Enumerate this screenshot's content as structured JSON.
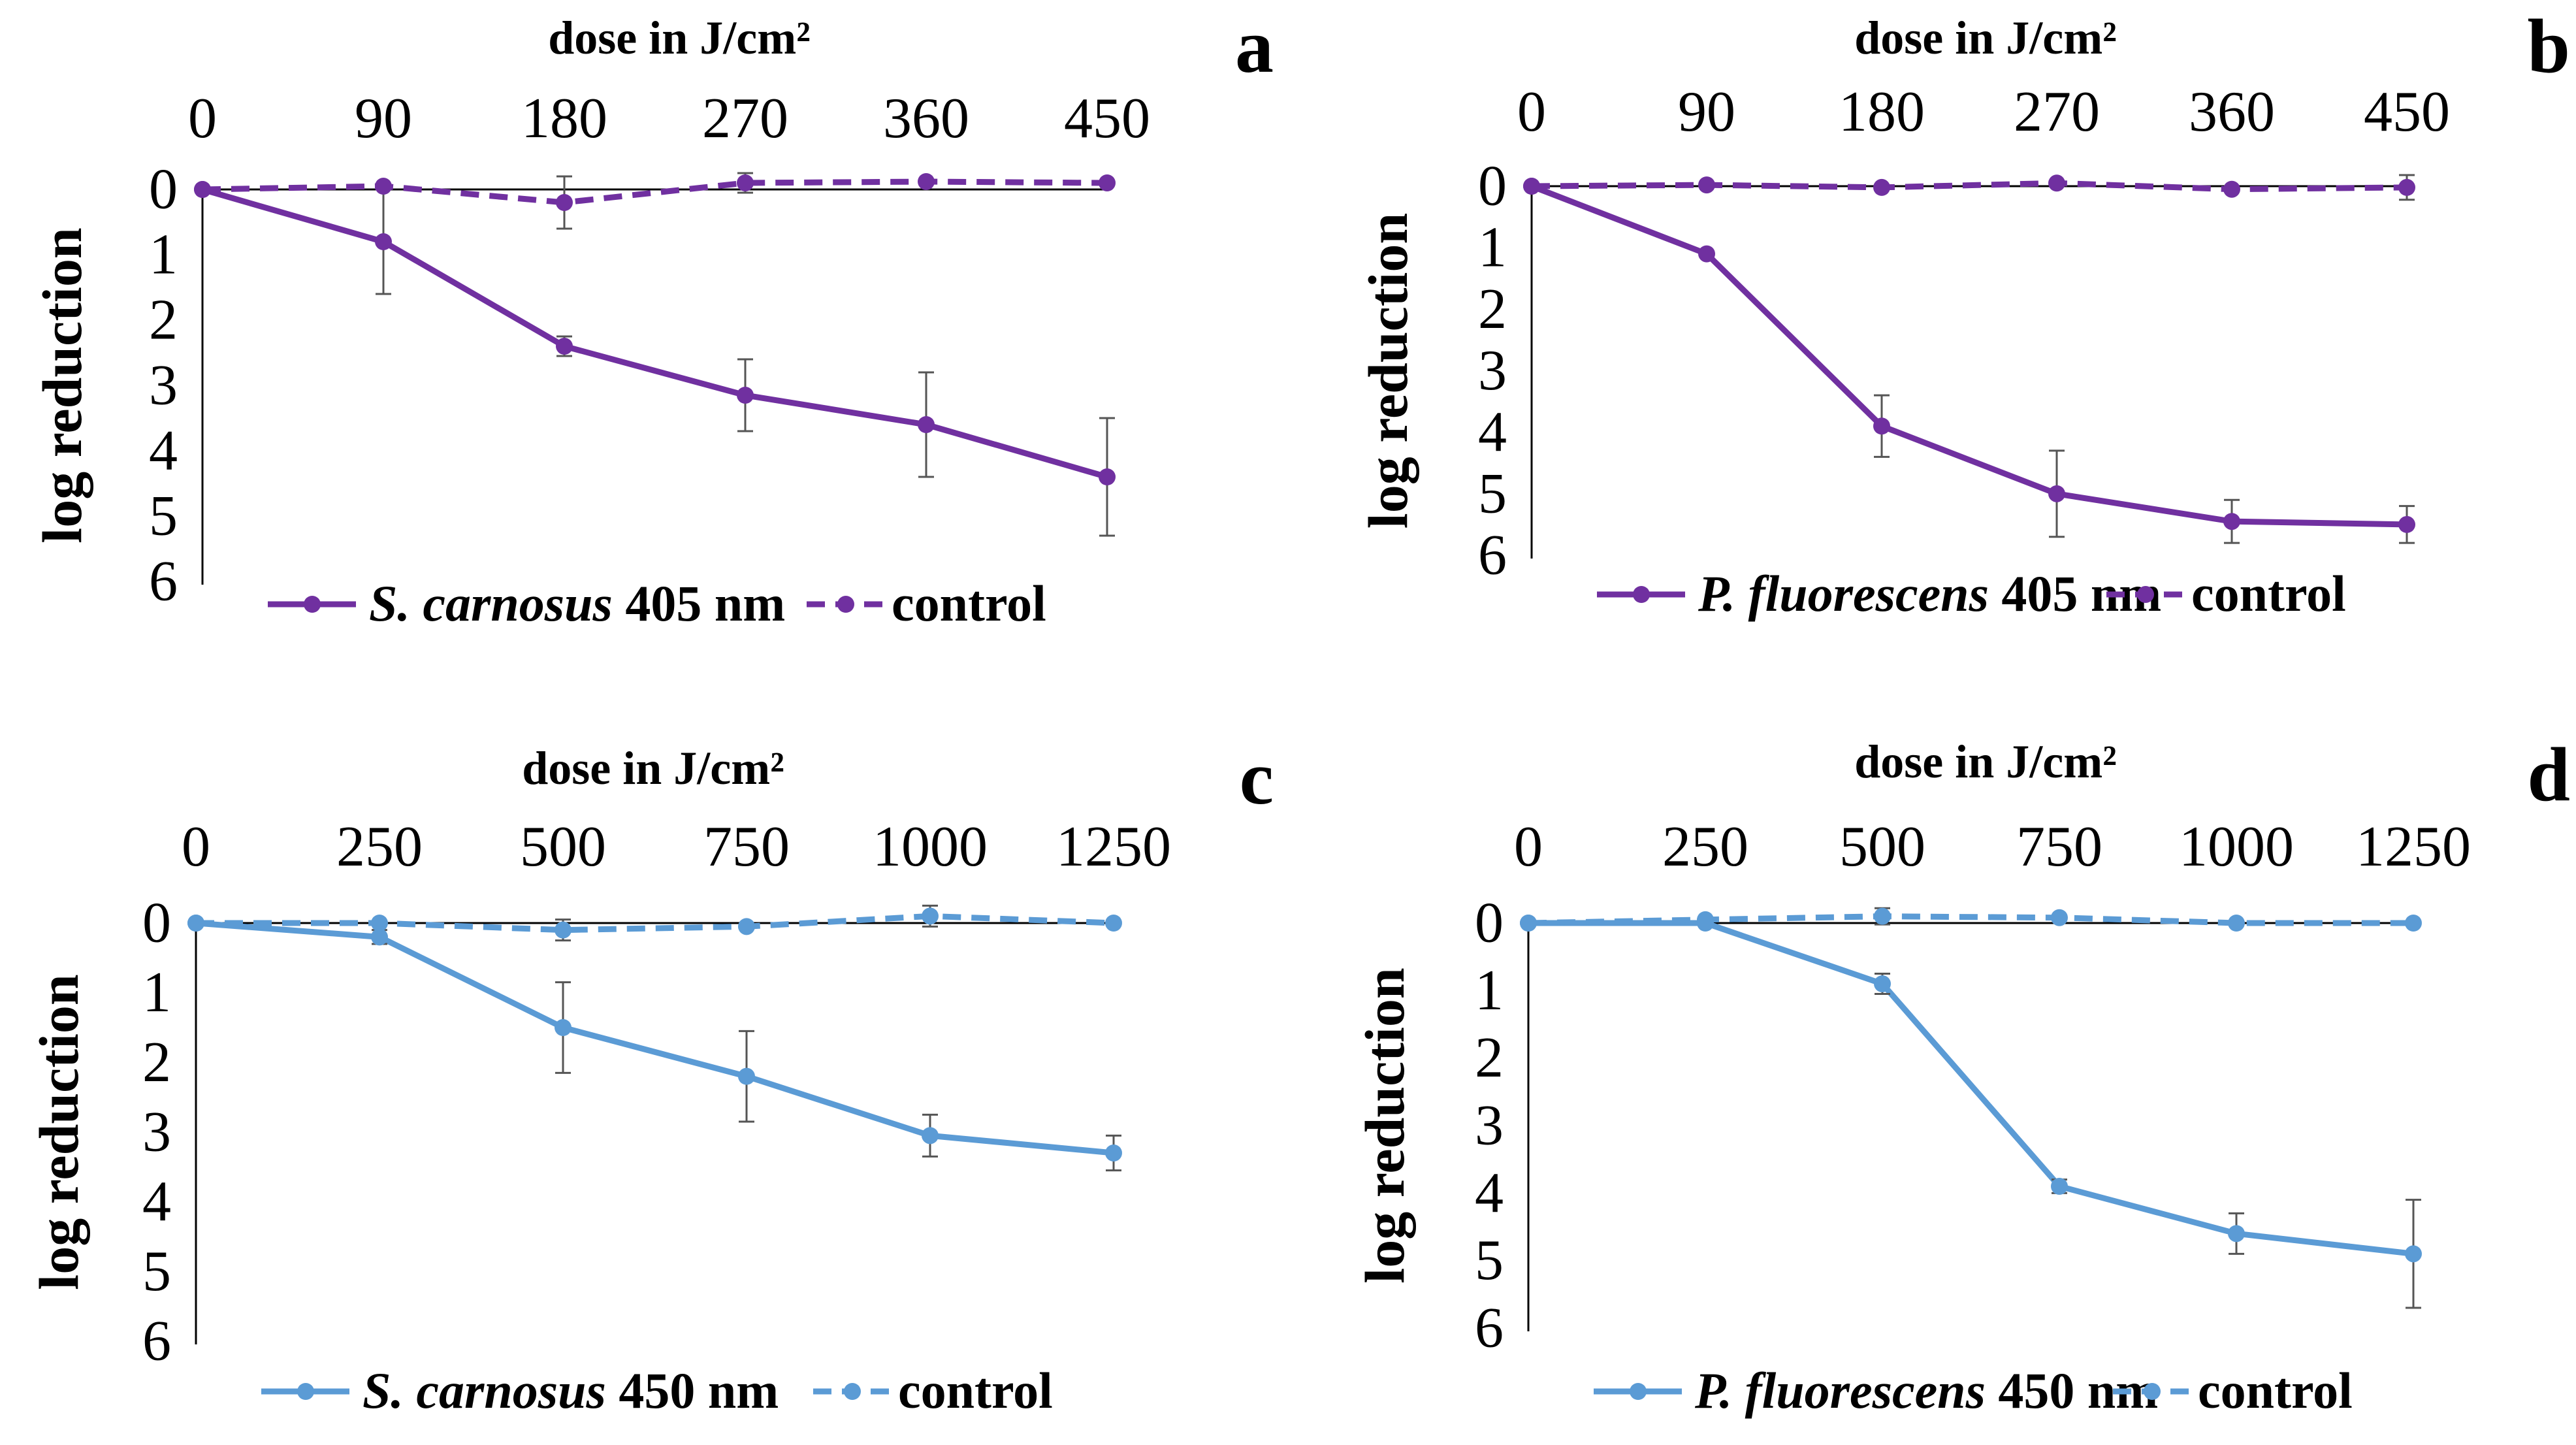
{
  "figure": {
    "description_free": true
  },
  "chart_data": [
    {
      "type": "line",
      "panel": "a",
      "xlabel": "dose in J/cm²",
      "ylabel": "log reduction",
      "x_axis_position": "top",
      "y_axis_inverted": true,
      "x": [
        0,
        90,
        180,
        270,
        360,
        450
      ],
      "xticks": [
        "0",
        "90",
        "180",
        "270",
        "360",
        "450"
      ],
      "xlim": [
        0,
        450
      ],
      "yticks": [
        "0",
        "1",
        "2",
        "3",
        "4",
        "5",
        "6"
      ],
      "ylim": [
        0,
        6
      ],
      "color": "#7030A0",
      "series": [
        {
          "name_italic": "S. carnosus",
          "name_rest": "405 nm",
          "style": "solid",
          "values": [
            0,
            0.8,
            2.4,
            3.15,
            3.6,
            4.4
          ],
          "errors": [
            0,
            0.8,
            0.15,
            0.55,
            0.8,
            0.9
          ]
        },
        {
          "name": "control",
          "style": "dashed",
          "values": [
            0,
            -0.05,
            0.2,
            -0.1,
            -0.12,
            -0.1
          ],
          "errors": [
            0,
            0,
            0.4,
            0.15,
            0,
            0
          ]
        }
      ]
    },
    {
      "type": "line",
      "panel": "b",
      "xlabel": "dose in J/cm²",
      "ylabel": "log reduction",
      "x_axis_position": "top",
      "y_axis_inverted": true,
      "x": [
        0,
        90,
        180,
        270,
        360,
        450
      ],
      "xticks": [
        "0",
        "90",
        "180",
        "270",
        "360",
        "450"
      ],
      "xlim": [
        0,
        450
      ],
      "yticks": [
        "0",
        "1",
        "2",
        "3",
        "4",
        "5",
        "6"
      ],
      "ylim": [
        0,
        6
      ],
      "color": "#7030A0",
      "series": [
        {
          "name_italic": "P. fluorescens",
          "name_rest": "405 nm",
          "style": "solid",
          "values": [
            0,
            1.1,
            3.9,
            5.0,
            5.45,
            5.5
          ],
          "errors": [
            0,
            0,
            0.5,
            0.7,
            0.35,
            0.3
          ]
        },
        {
          "name": "control",
          "style": "dashed",
          "values": [
            0,
            -0.02,
            0.02,
            -0.05,
            0.05,
            0.02
          ],
          "errors": [
            0,
            0,
            0,
            0,
            0,
            0.2
          ]
        }
      ]
    },
    {
      "type": "line",
      "panel": "c",
      "xlabel": "dose in J/cm²",
      "ylabel": "log reduction",
      "x_axis_position": "top",
      "y_axis_inverted": true,
      "x": [
        0,
        250,
        500,
        750,
        1000,
        1250
      ],
      "xticks": [
        "0",
        "250",
        "500",
        "750",
        "1000",
        "1250"
      ],
      "xlim": [
        0,
        1250
      ],
      "yticks": [
        "0",
        "1",
        "2",
        "3",
        "4",
        "5",
        "6"
      ],
      "ylim": [
        0,
        6
      ],
      "color": "#5B9BD5",
      "series": [
        {
          "name_italic": "S. carnosus",
          "name_rest": "450 nm",
          "style": "solid",
          "values": [
            0,
            0.2,
            1.5,
            2.2,
            3.05,
            3.3
          ],
          "errors": [
            0,
            0.1,
            0.65,
            0.65,
            0.3,
            0.25
          ]
        },
        {
          "name": "control",
          "style": "dashed",
          "values": [
            0,
            0,
            0.1,
            0.05,
            -0.1,
            0
          ],
          "errors": [
            0,
            0,
            0.15,
            0,
            0.15,
            0
          ]
        }
      ]
    },
    {
      "type": "line",
      "panel": "d",
      "xlabel": "dose in J/cm²",
      "ylabel": "log reduction",
      "x_axis_position": "top",
      "y_axis_inverted": true,
      "x": [
        0,
        250,
        500,
        750,
        1000,
        1250
      ],
      "xticks": [
        "0",
        "250",
        "500",
        "750",
        "1000",
        "1250"
      ],
      "xlim": [
        0,
        1250
      ],
      "yticks": [
        "0",
        "1",
        "2",
        "3",
        "4",
        "5",
        "6"
      ],
      "ylim": [
        0,
        6
      ],
      "color": "#5B9BD5",
      "series": [
        {
          "name_italic": "P. fluorescens",
          "name_rest": "450 nm",
          "style": "solid",
          "values": [
            0,
            0,
            0.9,
            3.9,
            4.6,
            4.9
          ],
          "errors": [
            0,
            0,
            0.15,
            0.1,
            0.3,
            0.8
          ]
        },
        {
          "name": "control",
          "style": "dashed",
          "values": [
            0,
            -0.05,
            -0.1,
            -0.08,
            0,
            0
          ],
          "errors": [
            0,
            0,
            0.12,
            0,
            0,
            0
          ]
        }
      ]
    }
  ]
}
